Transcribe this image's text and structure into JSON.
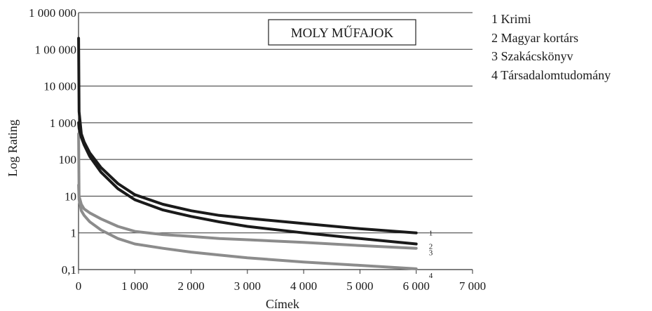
{
  "chart_data": {
    "type": "line",
    "title": "MOLY MŰFAJOK",
    "xlabel": "Címek",
    "ylabel": "Log Rating",
    "y_scale": "log",
    "xlim": [
      0,
      7000
    ],
    "ylim": [
      0.1,
      1000000
    ],
    "grid": true,
    "legend_position": "right",
    "x_ticks": [
      "0",
      "1 000",
      "2 000",
      "3 000",
      "4 000",
      "5 000",
      "6 000",
      "7 000"
    ],
    "y_ticks": [
      "0,1",
      "1",
      "10",
      "100",
      "1 000",
      "10 000",
      "1 00 000",
      "1 000 000"
    ],
    "x": [
      1,
      10,
      50,
      100,
      200,
      400,
      700,
      1000,
      1500,
      2000,
      2500,
      3000,
      4000,
      5000,
      6000
    ],
    "series": [
      {
        "name": "1 Krimi",
        "end_label": "1",
        "color": "#1a1a1a",
        "values": [
          200000,
          2000,
          500,
          300,
          150,
          60,
          22,
          11,
          6,
          4,
          3,
          2.5,
          1.8,
          1.3,
          1.0
        ]
      },
      {
        "name": "2 Magyar kortárs",
        "end_label": "2",
        "color": "#1a1a1a",
        "values": [
          1000,
          700,
          400,
          250,
          120,
          45,
          16,
          8,
          4.2,
          2.8,
          2.0,
          1.5,
          1.0,
          0.7,
          0.5
        ]
      },
      {
        "name": "3 Szakácskönyv",
        "end_label": "3",
        "color": "#8c8c8c",
        "values": [
          500,
          10,
          6,
          4.5,
          3.5,
          2.4,
          1.5,
          1.1,
          0.9,
          0.8,
          0.7,
          0.65,
          0.55,
          0.45,
          0.38
        ]
      },
      {
        "name": "4 Társadalomtudomány",
        "end_label": "4",
        "color": "#8c8c8c",
        "values": [
          20,
          8,
          4,
          3,
          2,
          1.2,
          0.7,
          0.5,
          0.38,
          0.3,
          0.25,
          0.21,
          0.16,
          0.13,
          0.105
        ]
      }
    ]
  }
}
